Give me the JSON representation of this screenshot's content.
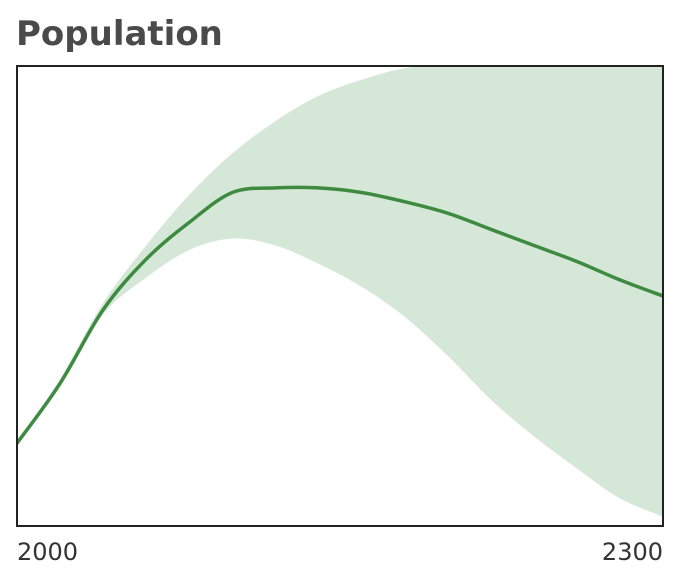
{
  "chart_data": {
    "type": "area",
    "title": "Population",
    "xlabel": "",
    "ylabel": "",
    "xlim": [
      2000,
      2300
    ],
    "ylim": [
      0,
      100
    ],
    "x_tick_labels": [
      "2000",
      "2300"
    ],
    "grid": false,
    "legend": "none",
    "colors": {
      "line": "#3d8a40",
      "band": "#d5e8d8",
      "frame": "#222222"
    },
    "x": [
      2000,
      2020,
      2040,
      2060,
      2080,
      2100,
      2120,
      2140,
      2160,
      2180,
      2200,
      2220,
      2240,
      2260,
      2280,
      2300
    ],
    "series": [
      {
        "role": "median",
        "values": [
          18,
          31,
          47,
          58,
          66,
          72.5,
          73.5,
          73.5,
          72.5,
          70.5,
          68,
          64.5,
          61,
          57.5,
          53.5,
          50
        ]
      }
    ],
    "band": {
      "lower": [
        18,
        31,
        46,
        54,
        60,
        62.5,
        61,
        57,
        52,
        45.5,
        37,
        27.5,
        19.5,
        12.5,
        6,
        2
      ],
      "upper": [
        18,
        32,
        48.5,
        61,
        72,
        81,
        88,
        93.5,
        97,
        99.5,
        100,
        100,
        100,
        100,
        100,
        100
      ]
    }
  }
}
